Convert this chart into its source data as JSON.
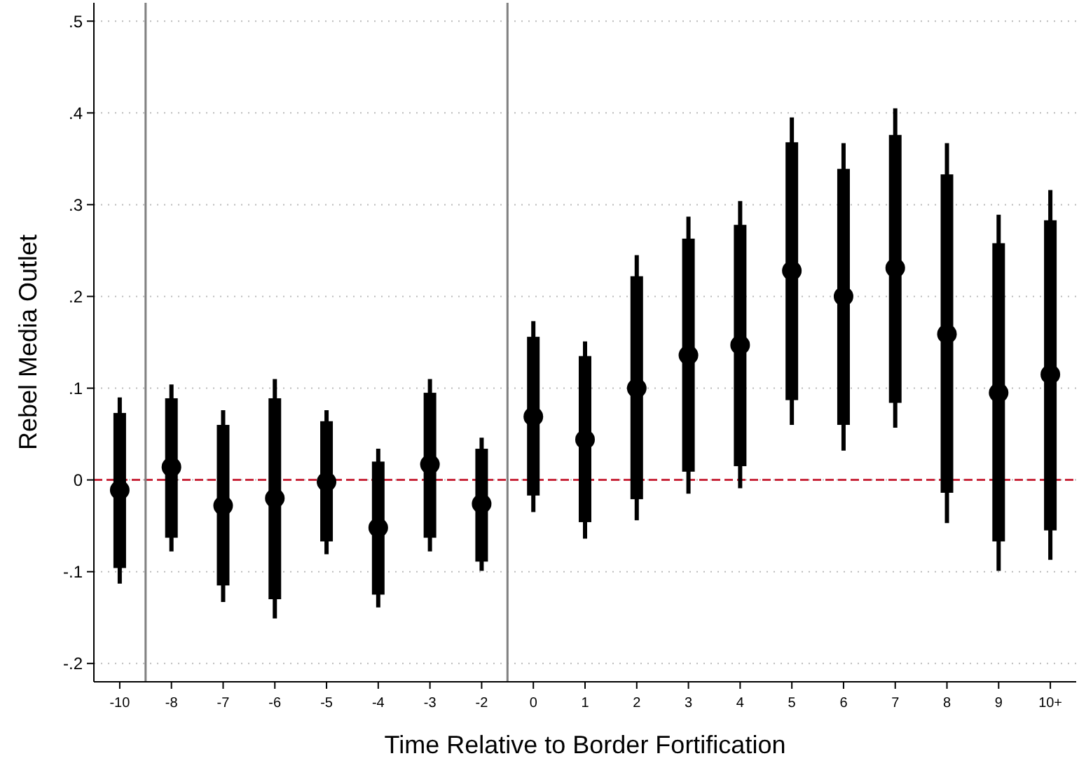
{
  "chart_data": {
    "type": "box",
    "xlabel": "Time Relative to Border Fortification",
    "ylabel": "Rebel Media Outlet",
    "categories": [
      "-10",
      "-8",
      "-7",
      "-6",
      "-5",
      "-4",
      "-3",
      "-2",
      "0",
      "1",
      "2",
      "3",
      "4",
      "5",
      "6",
      "7",
      "8",
      "9",
      "10+"
    ],
    "color": "#000000",
    "marker": "circle",
    "grid": "y",
    "boxes": [
      {
        "low": -0.113,
        "q1": -0.096,
        "median": -0.011,
        "q3": 0.073,
        "high": 0.09
      },
      {
        "low": -0.078,
        "q1": -0.063,
        "median": 0.014,
        "q3": 0.089,
        "high": 0.104
      },
      {
        "low": -0.133,
        "q1": -0.115,
        "median": -0.028,
        "q3": 0.06,
        "high": 0.076
      },
      {
        "low": -0.151,
        "q1": -0.13,
        "median": -0.02,
        "q3": 0.089,
        "high": 0.11
      },
      {
        "low": -0.081,
        "q1": -0.067,
        "median": -0.002,
        "q3": 0.064,
        "high": 0.076
      },
      {
        "low": -0.139,
        "q1": -0.125,
        "median": -0.052,
        "q3": 0.02,
        "high": 0.034
      },
      {
        "low": -0.078,
        "q1": -0.063,
        "median": 0.017,
        "q3": 0.095,
        "high": 0.11
      },
      {
        "low": -0.099,
        "q1": -0.089,
        "median": -0.026,
        "q3": 0.034,
        "high": 0.046
      },
      {
        "low": -0.035,
        "q1": -0.017,
        "median": 0.069,
        "q3": 0.156,
        "high": 0.173
      },
      {
        "low": -0.064,
        "q1": -0.046,
        "median": 0.044,
        "q3": 0.135,
        "high": 0.151
      },
      {
        "low": -0.044,
        "q1": -0.021,
        "median": 0.1,
        "q3": 0.222,
        "high": 0.245
      },
      {
        "low": -0.015,
        "q1": 0.009,
        "median": 0.136,
        "q3": 0.263,
        "high": 0.287
      },
      {
        "low": -0.009,
        "q1": 0.015,
        "median": 0.147,
        "q3": 0.278,
        "high": 0.304
      },
      {
        "low": 0.06,
        "q1": 0.087,
        "median": 0.228,
        "q3": 0.368,
        "high": 0.395
      },
      {
        "low": 0.032,
        "q1": 0.06,
        "median": 0.2,
        "q3": 0.339,
        "high": 0.367
      },
      {
        "low": 0.057,
        "q1": 0.084,
        "median": 0.231,
        "q3": 0.376,
        "high": 0.405
      },
      {
        "low": -0.047,
        "q1": -0.014,
        "median": 0.159,
        "q3": 0.333,
        "high": 0.367
      },
      {
        "low": -0.099,
        "q1": -0.067,
        "median": 0.095,
        "q3": 0.258,
        "high": 0.289
      },
      {
        "low": -0.087,
        "q1": -0.055,
        "median": 0.115,
        "q3": 0.283,
        "high": 0.316
      }
    ],
    "ylim": [
      -0.22,
      0.52
    ],
    "yticks": [
      {
        "value": -0.2,
        "label": "-.2"
      },
      {
        "value": -0.1,
        "label": "-.1"
      },
      0,
      {
        "value": 0.1,
        "label": ".1"
      },
      {
        "value": 0.2,
        "label": ".2"
      },
      {
        "value": 0.3,
        "label": ".3"
      },
      {
        "value": 0.4,
        "label": ".4"
      },
      {
        "value": 0.5,
        "label": ".5"
      }
    ],
    "ref_lines": [
      {
        "axis": "y",
        "value": 0,
        "color": "#c8283c",
        "line_style": "dashed"
      }
    ]
  }
}
